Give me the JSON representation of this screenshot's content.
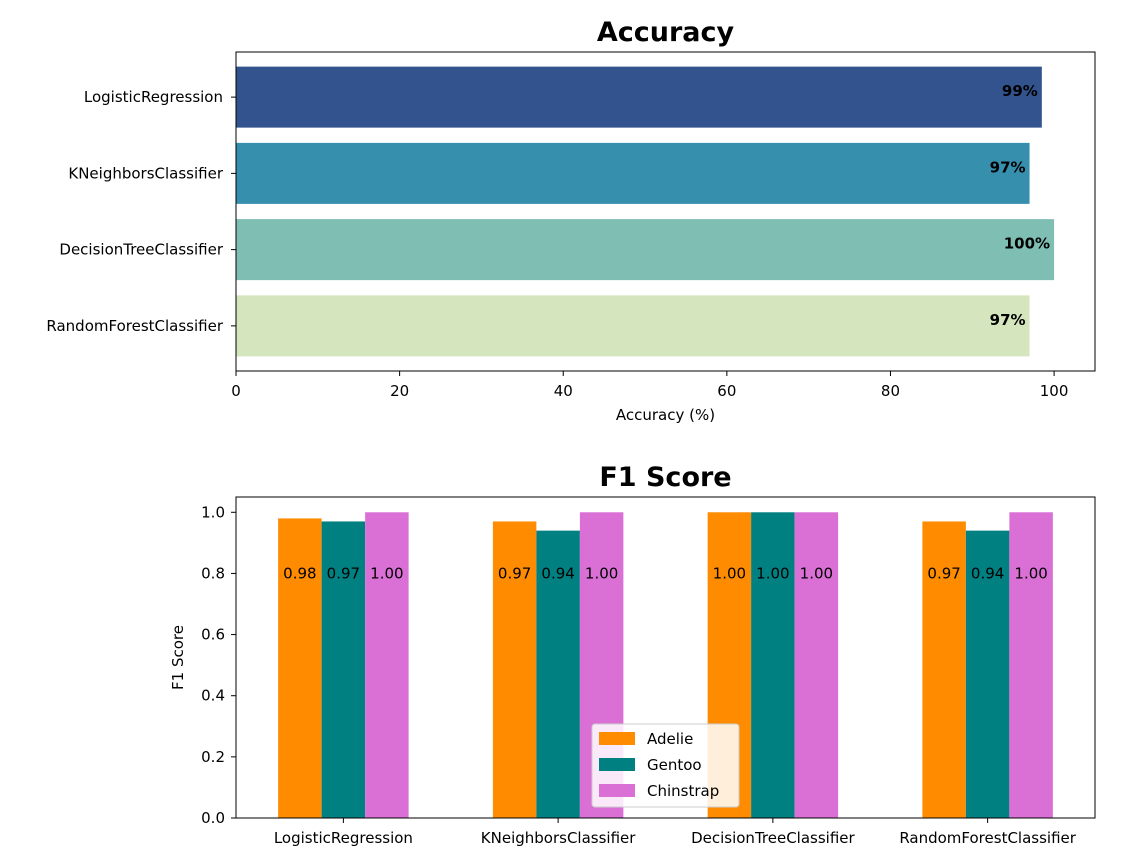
{
  "chart_data": [
    {
      "type": "bar",
      "orientation": "horizontal",
      "title": "Accuracy",
      "xlabel": "Accuracy (%)",
      "ylabel": "",
      "categories": [
        "LogisticRegression",
        "KNeighborsClassifier",
        "DecisionTreeClassifier",
        "RandomForestClassifier"
      ],
      "values": [
        98.5,
        97.0,
        100.0,
        97.0
      ],
      "value_labels": [
        "99%",
        "97%",
        "100%",
        "97%"
      ],
      "colors": [
        "#33538e",
        "#378fae",
        "#7fbfb3",
        "#d5e5bd"
      ],
      "xlim": [
        0,
        105
      ],
      "xticks": [
        0,
        20,
        40,
        60,
        80,
        100
      ],
      "grid": false
    },
    {
      "type": "bar",
      "orientation": "vertical",
      "title": "F1 Score",
      "xlabel": "",
      "ylabel": "F1 Score",
      "categories": [
        "LogisticRegression",
        "KNeighborsClassifier",
        "DecisionTreeClassifier",
        "RandomForestClassifier"
      ],
      "series": [
        {
          "name": "Adelie",
          "color": "#ff8c00",
          "values": [
            0.98,
            0.97,
            1.0,
            0.97
          ],
          "labels": [
            "0.98",
            "0.97",
            "1.00",
            "0.97"
          ]
        },
        {
          "name": "Gentoo",
          "color": "#008080",
          "values": [
            0.97,
            0.94,
            1.0,
            0.94
          ],
          "labels": [
            "0.97",
            "0.94",
            "1.00",
            "0.94"
          ]
        },
        {
          "name": "Chinstrap",
          "color": "#da70d6",
          "values": [
            1.0,
            1.0,
            1.0,
            1.0
          ],
          "labels": [
            "1.00",
            "1.00",
            "1.00",
            "1.00"
          ]
        }
      ],
      "ylim": [
        0,
        1.05
      ],
      "yticks": [
        "0.0",
        "0.2",
        "0.4",
        "0.6",
        "0.8",
        "1.0"
      ],
      "legend_position": "bottom-center",
      "grid": false
    }
  ]
}
